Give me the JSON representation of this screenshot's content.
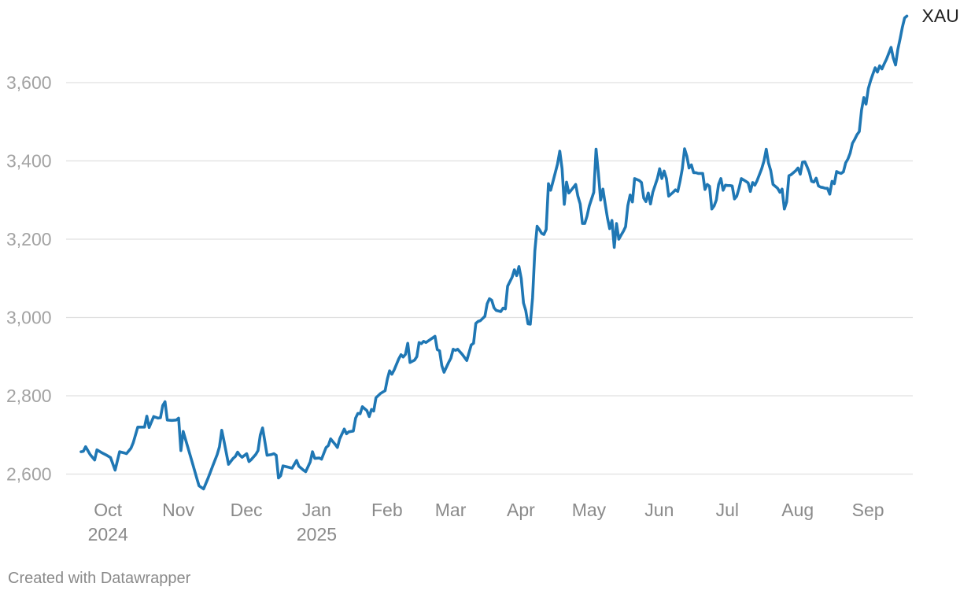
{
  "chart_data": {
    "type": "line",
    "title": "",
    "xlabel": "",
    "ylabel": "",
    "x_range": [
      0,
      360
    ],
    "ylim": [
      2550,
      3780
    ],
    "y_ticks": [
      2600,
      2800,
      3000,
      3200,
      3400,
      3600
    ],
    "y_tick_labels": [
      "2,600",
      "2,800",
      "3,000",
      "3,200",
      "3,400",
      "3,600"
    ],
    "grid": true,
    "x_ticks": [
      {
        "label": "Oct",
        "year": "2024",
        "t": 7
      },
      {
        "label": "Nov",
        "year": "",
        "t": 38
      },
      {
        "label": "Dec",
        "year": "",
        "t": 68
      },
      {
        "label": "Jan",
        "year": "2025",
        "t": 99
      },
      {
        "label": "Feb",
        "year": "",
        "t": 130
      },
      {
        "label": "Mar",
        "year": "",
        "t": 158
      },
      {
        "label": "Apr",
        "year": "",
        "t": 189
      },
      {
        "label": "May",
        "year": "",
        "t": 219
      },
      {
        "label": "Jun",
        "year": "",
        "t": 250
      },
      {
        "label": "Jul",
        "year": "",
        "t": 280
      },
      {
        "label": "Aug",
        "year": "",
        "t": 311
      },
      {
        "label": "Sep",
        "year": "",
        "t": 342
      }
    ],
    "series": [
      {
        "name": "XAU",
        "color": "#1f77b4",
        "points": [
          [
            0,
            2657
          ],
          [
            1,
            2658
          ],
          [
            2,
            2670
          ],
          [
            4,
            2650
          ],
          [
            6,
            2636
          ],
          [
            7,
            2662
          ],
          [
            9,
            2655
          ],
          [
            11,
            2649
          ],
          [
            13,
            2642
          ],
          [
            15,
            2610
          ],
          [
            17,
            2657
          ],
          [
            19,
            2654
          ],
          [
            20,
            2652
          ],
          [
            22,
            2666
          ],
          [
            23,
            2680
          ],
          [
            25,
            2720
          ],
          [
            27,
            2720
          ],
          [
            28,
            2720
          ],
          [
            29,
            2748
          ],
          [
            30,
            2719
          ],
          [
            32,
            2747
          ],
          [
            34,
            2743
          ],
          [
            35,
            2744
          ],
          [
            36,
            2775
          ],
          [
            37,
            2785
          ],
          [
            38,
            2738
          ],
          [
            40,
            2737
          ],
          [
            42,
            2738
          ],
          [
            43,
            2743
          ],
          [
            44,
            2660
          ],
          [
            45,
            2709
          ],
          [
            47,
            2670
          ],
          [
            49,
            2630
          ],
          [
            51,
            2590
          ],
          [
            52,
            2570
          ],
          [
            54,
            2562
          ],
          [
            56,
            2590
          ],
          [
            58,
            2620
          ],
          [
            60,
            2650
          ],
          [
            61,
            2670
          ],
          [
            62,
            2712
          ],
          [
            63,
            2685
          ],
          [
            65,
            2625
          ],
          [
            67,
            2640
          ],
          [
            68,
            2645
          ],
          [
            69,
            2656
          ],
          [
            70,
            2648
          ],
          [
            71,
            2643
          ],
          [
            73,
            2652
          ],
          [
            74,
            2632
          ],
          [
            75,
            2637
          ],
          [
            77,
            2650
          ],
          [
            78,
            2660
          ],
          [
            79,
            2700
          ],
          [
            80,
            2718
          ],
          [
            81,
            2683
          ],
          [
            82,
            2648
          ],
          [
            84,
            2650
          ],
          [
            85,
            2652
          ],
          [
            86,
            2648
          ],
          [
            87,
            2590
          ],
          [
            88,
            2596
          ],
          [
            89,
            2621
          ],
          [
            91,
            2618
          ],
          [
            93,
            2615
          ],
          [
            95,
            2635
          ],
          [
            96,
            2620
          ],
          [
            98,
            2610
          ],
          [
            99,
            2606
          ],
          [
            101,
            2631
          ],
          [
            102,
            2657
          ],
          [
            103,
            2640
          ],
          [
            105,
            2641
          ],
          [
            106,
            2638
          ],
          [
            107,
            2653
          ],
          [
            108,
            2668
          ],
          [
            109,
            2673
          ],
          [
            110,
            2690
          ],
          [
            112,
            2676
          ],
          [
            113,
            2668
          ],
          [
            114,
            2690
          ],
          [
            116,
            2715
          ],
          [
            117,
            2703
          ],
          [
            118,
            2708
          ],
          [
            120,
            2710
          ],
          [
            121,
            2743
          ],
          [
            122,
            2755
          ],
          [
            123,
            2754
          ],
          [
            124,
            2772
          ],
          [
            126,
            2762
          ],
          [
            127,
            2747
          ],
          [
            128,
            2765
          ],
          [
            129,
            2761
          ],
          [
            130,
            2795
          ],
          [
            132,
            2806
          ],
          [
            134,
            2813
          ],
          [
            135,
            2843
          ],
          [
            136,
            2864
          ],
          [
            137,
            2855
          ],
          [
            138,
            2866
          ],
          [
            140,
            2894
          ],
          [
            141,
            2905
          ],
          [
            142,
            2899
          ],
          [
            143,
            2906
          ],
          [
            144,
            2934
          ],
          [
            145,
            2885
          ],
          [
            147,
            2891
          ],
          [
            148,
            2900
          ],
          [
            149,
            2936
          ],
          [
            150,
            2933
          ],
          [
            151,
            2939
          ],
          [
            152,
            2936
          ],
          [
            154,
            2944
          ],
          [
            155,
            2948
          ],
          [
            156,
            2952
          ],
          [
            157,
            2918
          ],
          [
            158,
            2915
          ],
          [
            159,
            2877
          ],
          [
            160,
            2860
          ],
          [
            162,
            2885
          ],
          [
            163,
            2896
          ],
          [
            164,
            2919
          ],
          [
            165,
            2916
          ],
          [
            166,
            2919
          ],
          [
            168,
            2906
          ],
          [
            170,
            2890
          ],
          [
            172,
            2930
          ],
          [
            173,
            2934
          ],
          [
            174,
            2985
          ],
          [
            175,
            2990
          ],
          [
            176,
            2992
          ],
          [
            178,
            3003
          ],
          [
            179,
            3035
          ],
          [
            180,
            3048
          ],
          [
            181,
            3044
          ],
          [
            182,
            3025
          ],
          [
            183,
            3018
          ],
          [
            185,
            3015
          ],
          [
            186,
            3024
          ],
          [
            187,
            3022
          ],
          [
            188,
            3080
          ],
          [
            190,
            3103
          ],
          [
            191,
            3122
          ],
          [
            192,
            3107
          ],
          [
            193,
            3130
          ],
          [
            194,
            3100
          ],
          [
            195,
            3037
          ],
          [
            196,
            3018
          ],
          [
            197,
            2984
          ],
          [
            198,
            2983
          ],
          [
            199,
            3050
          ],
          [
            200,
            3170
          ],
          [
            201,
            3233
          ],
          [
            202,
            3225
          ],
          [
            203,
            3215
          ],
          [
            204,
            3212
          ],
          [
            205,
            3225
          ],
          [
            206,
            3342
          ],
          [
            207,
            3325
          ],
          [
            208,
            3347
          ],
          [
            210,
            3392
          ],
          [
            211,
            3425
          ],
          [
            212,
            3380
          ],
          [
            213,
            3289
          ],
          [
            214,
            3346
          ],
          [
            215,
            3318
          ],
          [
            216,
            3325
          ],
          [
            218,
            3340
          ],
          [
            219,
            3310
          ],
          [
            220,
            3290
          ],
          [
            221,
            3240
          ],
          [
            222,
            3240
          ],
          [
            223,
            3259
          ],
          [
            224,
            3285
          ],
          [
            226,
            3320
          ],
          [
            227,
            3430
          ],
          [
            228,
            3370
          ],
          [
            229,
            3300
          ],
          [
            230,
            3328
          ],
          [
            231,
            3290
          ],
          [
            232,
            3255
          ],
          [
            233,
            3227
          ],
          [
            234,
            3248
          ],
          [
            235,
            3179
          ],
          [
            236,
            3240
          ],
          [
            237,
            3200
          ],
          [
            238,
            3210
          ],
          [
            239,
            3220
          ],
          [
            240,
            3232
          ],
          [
            241,
            3286
          ],
          [
            242,
            3313
          ],
          [
            243,
            3295
          ],
          [
            244,
            3355
          ],
          [
            246,
            3350
          ],
          [
            247,
            3345
          ],
          [
            248,
            3305
          ],
          [
            249,
            3296
          ],
          [
            250,
            3318
          ],
          [
            251,
            3290
          ],
          [
            252,
            3320
          ],
          [
            254,
            3355
          ],
          [
            255,
            3380
          ],
          [
            256,
            3355
          ],
          [
            257,
            3374
          ],
          [
            258,
            3355
          ],
          [
            259,
            3310
          ],
          [
            261,
            3320
          ],
          [
            262,
            3326
          ],
          [
            263,
            3322
          ],
          [
            264,
            3348
          ],
          [
            265,
            3380
          ],
          [
            266,
            3431
          ],
          [
            267,
            3412
          ],
          [
            268,
            3382
          ],
          [
            269,
            3390
          ],
          [
            270,
            3370
          ],
          [
            271,
            3370
          ],
          [
            272,
            3368
          ],
          [
            273,
            3368
          ],
          [
            274,
            3368
          ],
          [
            275,
            3327
          ],
          [
            276,
            3340
          ],
          [
            277,
            3335
          ],
          [
            278,
            3277
          ],
          [
            279,
            3285
          ],
          [
            280,
            3300
          ],
          [
            281,
            3340
          ],
          [
            282,
            3355
          ],
          [
            283,
            3325
          ],
          [
            284,
            3338
          ],
          [
            285,
            3337
          ],
          [
            286,
            3337
          ],
          [
            287,
            3336
          ],
          [
            288,
            3303
          ],
          [
            289,
            3310
          ],
          [
            290,
            3330
          ],
          [
            291,
            3355
          ],
          [
            293,
            3348
          ],
          [
            294,
            3344
          ],
          [
            295,
            3322
          ],
          [
            296,
            3345
          ],
          [
            297,
            3338
          ],
          [
            298,
            3350
          ],
          [
            299,
            3365
          ],
          [
            300,
            3380
          ],
          [
            301,
            3400
          ],
          [
            302,
            3430
          ],
          [
            303,
            3395
          ],
          [
            304,
            3375
          ],
          [
            305,
            3340
          ],
          [
            307,
            3330
          ],
          [
            308,
            3320
          ],
          [
            309,
            3328
          ],
          [
            310,
            3277
          ],
          [
            311,
            3295
          ],
          [
            312,
            3362
          ],
          [
            313,
            3365
          ],
          [
            314,
            3370
          ],
          [
            315,
            3375
          ],
          [
            316,
            3382
          ],
          [
            317,
            3366
          ],
          [
            318,
            3397
          ],
          [
            319,
            3398
          ],
          [
            320,
            3385
          ],
          [
            321,
            3370
          ],
          [
            322,
            3348
          ],
          [
            323,
            3346
          ],
          [
            324,
            3356
          ],
          [
            325,
            3336
          ],
          [
            326,
            3333
          ],
          [
            327,
            3332
          ],
          [
            328,
            3330
          ],
          [
            329,
            3330
          ],
          [
            330,
            3315
          ],
          [
            331,
            3348
          ],
          [
            332,
            3342
          ],
          [
            333,
            3373
          ],
          [
            334,
            3370
          ],
          [
            335,
            3368
          ],
          [
            336,
            3372
          ],
          [
            337,
            3395
          ],
          [
            338,
            3405
          ],
          [
            339,
            3420
          ],
          [
            340,
            3445
          ],
          [
            341,
            3455
          ],
          [
            342,
            3467
          ],
          [
            343,
            3475
          ],
          [
            344,
            3530
          ],
          [
            345,
            3562
          ],
          [
            346,
            3545
          ],
          [
            347,
            3585
          ],
          [
            348,
            3605
          ],
          [
            349,
            3622
          ],
          [
            350,
            3638
          ],
          [
            351,
            3627
          ],
          [
            352,
            3643
          ],
          [
            353,
            3635
          ],
          [
            354,
            3648
          ],
          [
            355,
            3660
          ],
          [
            356,
            3675
          ],
          [
            357,
            3690
          ],
          [
            358,
            3663
          ],
          [
            359,
            3645
          ],
          [
            360,
            3685
          ],
          [
            361,
            3712
          ],
          [
            362,
            3742
          ],
          [
            363,
            3765
          ],
          [
            364,
            3770
          ]
        ]
      }
    ]
  },
  "credit": "Created with Datawrapper"
}
